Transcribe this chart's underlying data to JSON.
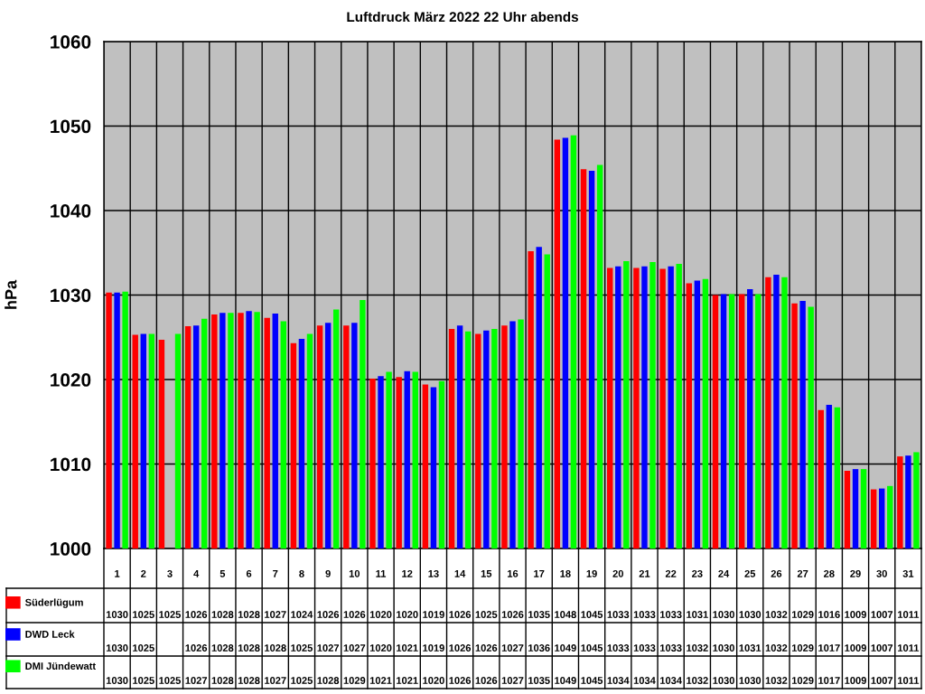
{
  "chart_data": {
    "type": "bar",
    "title": "Luftdruck März 2022 22 Uhr abends",
    "ylabel": "hPa",
    "categories": [
      "1",
      "2",
      "3",
      "4",
      "5",
      "6",
      "7",
      "8",
      "9",
      "10",
      "11",
      "12",
      "13",
      "14",
      "15",
      "16",
      "17",
      "18",
      "19",
      "20",
      "21",
      "22",
      "23",
      "24",
      "25",
      "26",
      "27",
      "28",
      "29",
      "30",
      "31"
    ],
    "series": [
      {
        "name": "Süderlügum",
        "color": "#ff0000",
        "values": [
          1030.3,
          1025.3,
          1024.7,
          1026.3,
          1027.7,
          1027.9,
          1027.3,
          1024.3,
          1026.4,
          1026.4,
          1020.1,
          1020.3,
          1019.4,
          1026.0,
          1025.4,
          1026.4,
          1035.2,
          1048.4,
          1044.9,
          1033.2,
          1033.2,
          1033.1,
          1031.4,
          1030.0,
          1030.1,
          1032.1,
          1029.0,
          1016.4,
          1009.2,
          1007.0,
          1010.9
        ],
        "value_labels": [
          "1030",
          "1025",
          "1025",
          "1026",
          "1028",
          "1028",
          "1027",
          "1024",
          "1026",
          "1026",
          "1020",
          "1020",
          "1019",
          "1026",
          "1025",
          "1026",
          "1035",
          "1048",
          "1045",
          "1033",
          "1033",
          "1033",
          "1031",
          "1030",
          "1030",
          "1032",
          "1029",
          "1016",
          "1009",
          "1007",
          "1011"
        ]
      },
      {
        "name": "DWD Leck",
        "color": "#0000ff",
        "values": [
          1030.3,
          1025.4,
          null,
          1026.4,
          1027.9,
          1028.1,
          1027.8,
          1024.8,
          1026.7,
          1026.7,
          1020.4,
          1021.0,
          1019.1,
          1026.4,
          1025.8,
          1026.9,
          1035.7,
          1048.6,
          1044.7,
          1033.4,
          1033.4,
          1033.4,
          1031.7,
          1030.1,
          1030.7,
          1032.4,
          1029.3,
          1017.0,
          1009.4,
          1007.1,
          1011.0
        ],
        "value_labels": [
          "1030",
          "1025",
          null,
          "1026",
          "1028",
          "1028",
          "1028",
          "1025",
          "1027",
          "1027",
          "1020",
          "1021",
          "1019",
          "1026",
          "1026",
          "1027",
          "1036",
          "1049",
          "1045",
          "1033",
          "1033",
          "1033",
          "1032",
          "1030",
          "1031",
          "1032",
          "1029",
          "1017",
          "1009",
          "1007",
          "1011"
        ]
      },
      {
        "name": "DMI Jündewatt",
        "color": "#00ff00",
        "values": [
          1030.4,
          1025.4,
          1025.4,
          1027.2,
          1027.9,
          1028.0,
          1026.9,
          1025.4,
          1028.3,
          1029.4,
          1020.9,
          1020.9,
          1019.8,
          1025.7,
          1026.0,
          1027.1,
          1034.8,
          1048.9,
          1045.4,
          1034.0,
          1033.9,
          1033.7,
          1031.9,
          1030.1,
          1030.1,
          1032.1,
          1028.6,
          1016.7,
          1009.4,
          1007.4,
          1011.4
        ],
        "value_labels": [
          "1030",
          "1025",
          "1025",
          "1027",
          "1028",
          "1028",
          "1027",
          "1025",
          "1028",
          "1029",
          "1021",
          "1021",
          "1020",
          "1026",
          "1026",
          "1027",
          "1035",
          "1049",
          "1045",
          "1034",
          "1034",
          "1034",
          "1032",
          "1030",
          "1030",
          "1032",
          "1029",
          "1017",
          "1009",
          "1007",
          "1011"
        ]
      }
    ],
    "ylim": [
      1000,
      1060
    ],
    "yticks": [
      1000,
      1010,
      1020,
      1030,
      1040,
      1050,
      1060
    ],
    "grid": true,
    "legend": "bottom"
  }
}
